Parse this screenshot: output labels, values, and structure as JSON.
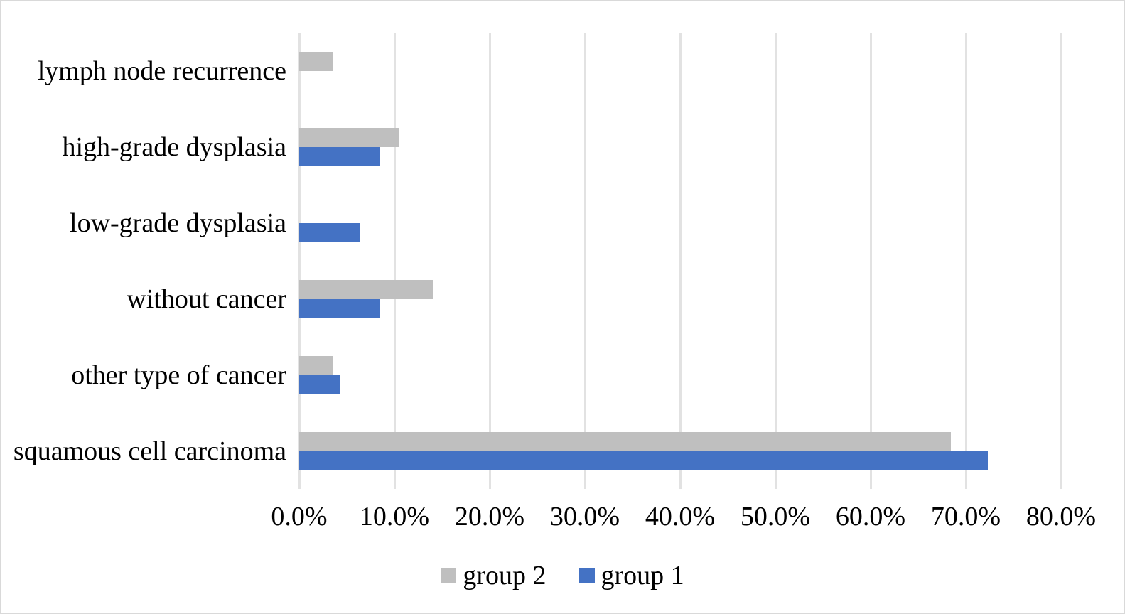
{
  "chart_data": {
    "type": "bar",
    "orientation": "horizontal",
    "title": "",
    "xlabel": "",
    "ylabel": "",
    "categories": [
      "lymph node recurrence",
      "high-grade dysplasia",
      "low-grade dysplasia",
      "without cancer",
      "other type of cancer",
      "squamous cell carcinoma"
    ],
    "series": [
      {
        "name": "group 2",
        "color": "#bfbfbf",
        "values": [
          3.5,
          10.5,
          0,
          14.0,
          3.5,
          68.4
        ]
      },
      {
        "name": "group 1",
        "color": "#4472c4",
        "values": [
          0,
          8.5,
          6.4,
          8.5,
          4.3,
          72.3
        ]
      }
    ],
    "value_unit": "%",
    "xlim": [
      0,
      80
    ],
    "x_tick_step": 10,
    "x_tick_labels": [
      "0.0%",
      "10.0%",
      "20.0%",
      "30.0%",
      "40.0%",
      "50.0%",
      "60.0%",
      "70.0%",
      "80.0%"
    ],
    "grid": "vertical",
    "gridline_color": "#e2e2e2",
    "background_color": "#ffffff",
    "border_color": "#d9d9d9",
    "legend_position": "bottom",
    "legend": [
      {
        "label": "group 2",
        "color": "#bfbfbf"
      },
      {
        "label": "group 1",
        "color": "#4472c4"
      }
    ]
  }
}
